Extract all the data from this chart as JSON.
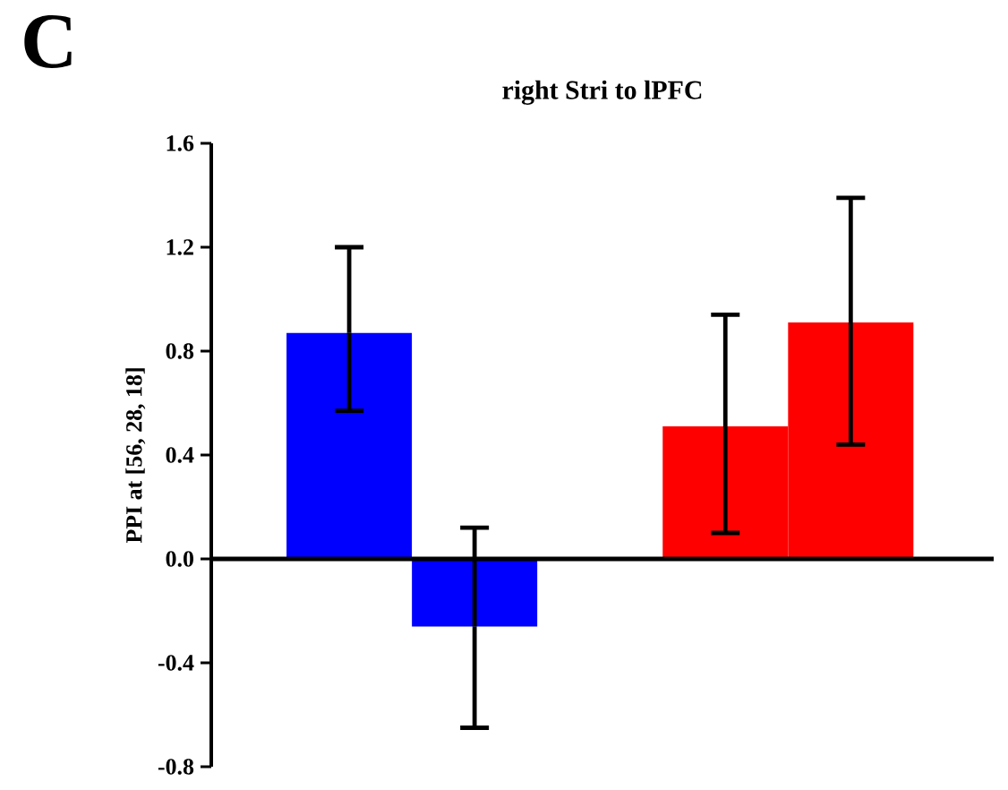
{
  "chart_data": {
    "type": "bar",
    "title": "right Stri to lPFC",
    "ylabel": "PPI at [56, 28, 18]",
    "annotations": [
      "C"
    ],
    "categories": [
      null,
      null,
      null,
      null
    ],
    "values": [
      0.87,
      -0.26,
      0.51,
      0.91
    ],
    "colors": [
      "#0000ff",
      "#0000ff",
      "#ff0000",
      "#ff0000"
    ],
    "errors": [
      [
        0.57,
        1.2
      ],
      [
        -0.65,
        0.12
      ],
      [
        0.1,
        0.94
      ],
      [
        0.44,
        1.39
      ]
    ],
    "ylim": [
      -0.8,
      1.6
    ],
    "yticks": [
      {
        "value": -0.8,
        "label": "-0.8"
      },
      {
        "value": -0.4,
        "label": "-0.4"
      },
      {
        "value": 0.0,
        "label": "0.0"
      },
      {
        "value": 0.4,
        "label": "0.4"
      },
      {
        "value": 0.8,
        "label": "0.8"
      },
      {
        "value": 1.2,
        "label": "1.2"
      },
      {
        "value": 1.6,
        "label": "1.6"
      }
    ],
    "data_labels": false
  }
}
